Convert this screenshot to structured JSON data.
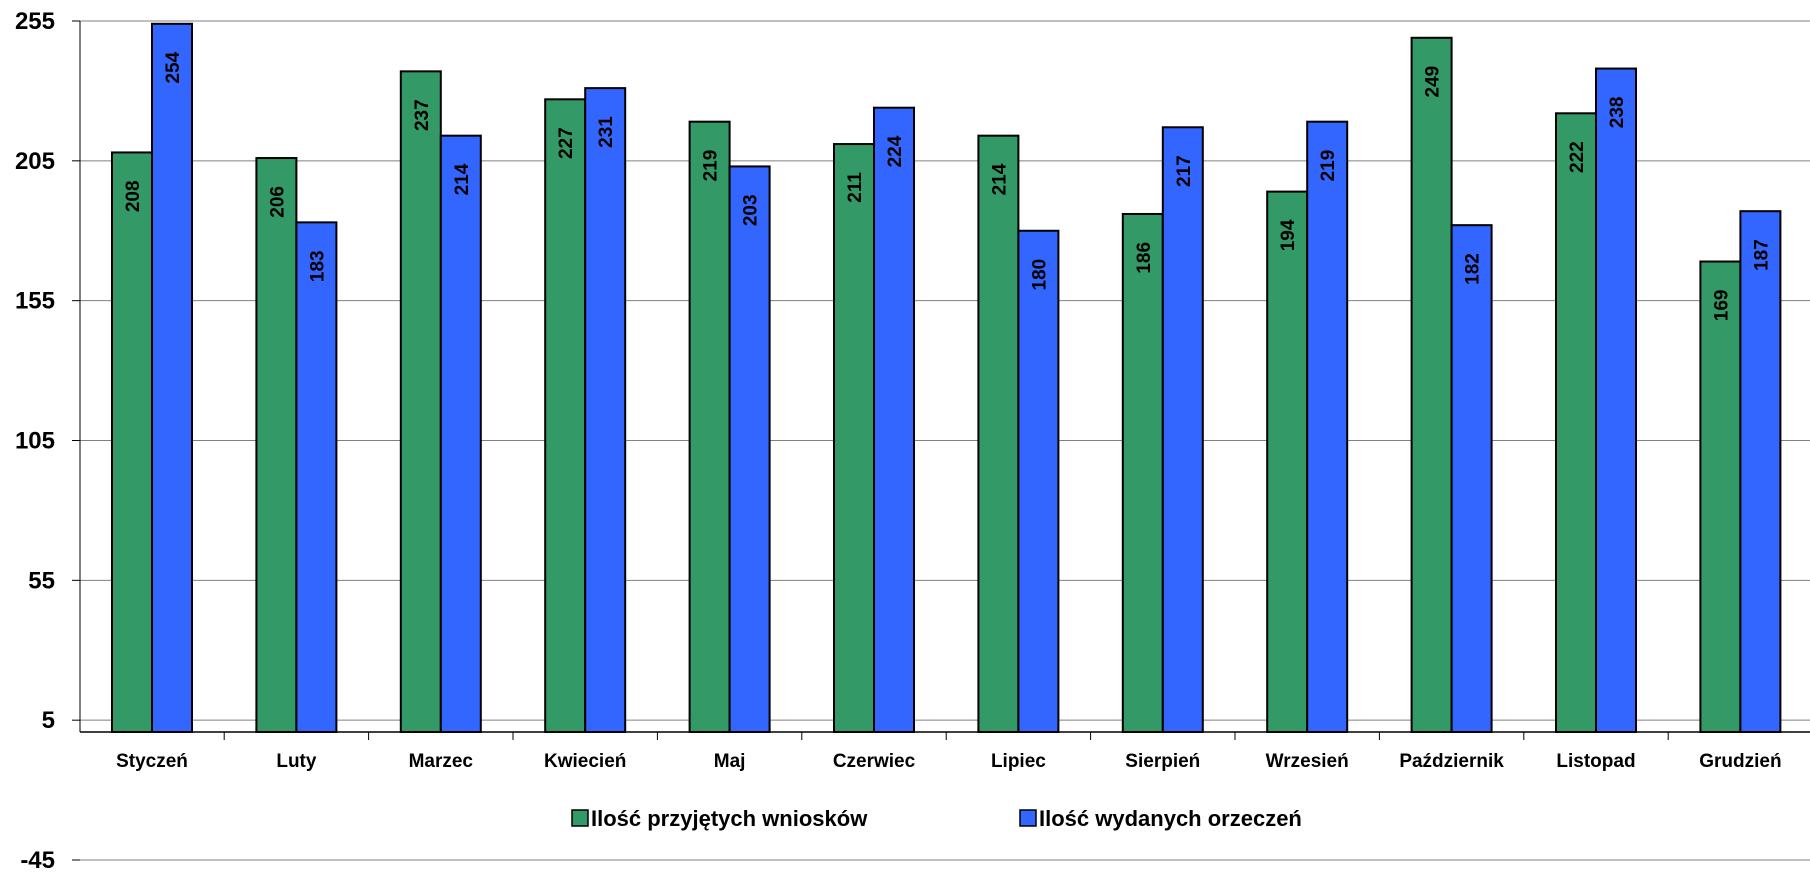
{
  "chart_data": {
    "type": "bar",
    "categories": [
      "Styczeń",
      "Luty",
      "Marzec",
      "Kwiecień",
      "Maj",
      "Czerwiec",
      "Lipiec",
      "Sierpień",
      "Wrzesień",
      "Październik",
      "Listopad",
      "Grudzień"
    ],
    "series": [
      {
        "name": "Ilość przyjętych wniosków",
        "color": "#339966",
        "values": [
          208,
          206,
          237,
          227,
          219,
          211,
          214,
          186,
          194,
          249,
          222,
          169
        ],
        "labels": [
          "208",
          "206",
          "237",
          "227",
          "219",
          "211",
          "214",
          "186",
          "194",
          "249",
          "222",
          "169"
        ]
      },
      {
        "name": "Ilość wydanych orzeczeń",
        "color": "#3366FF",
        "values": [
          254,
          183,
          214,
          231,
          203,
          224,
          180,
          217,
          219,
          182,
          238,
          187
        ],
        "labels": [
          "254",
          "183",
          "214",
          "231",
          "203",
          "224",
          "180",
          "217",
          "219",
          "182",
          "238",
          "187"
        ]
      }
    ],
    "yticks": [
      "255",
      "205",
      "155",
      "105",
      "55",
      "5",
      "-45"
    ],
    "ylim": [
      -45,
      255
    ],
    "grid": true,
    "legend_position": "bottom-center"
  }
}
